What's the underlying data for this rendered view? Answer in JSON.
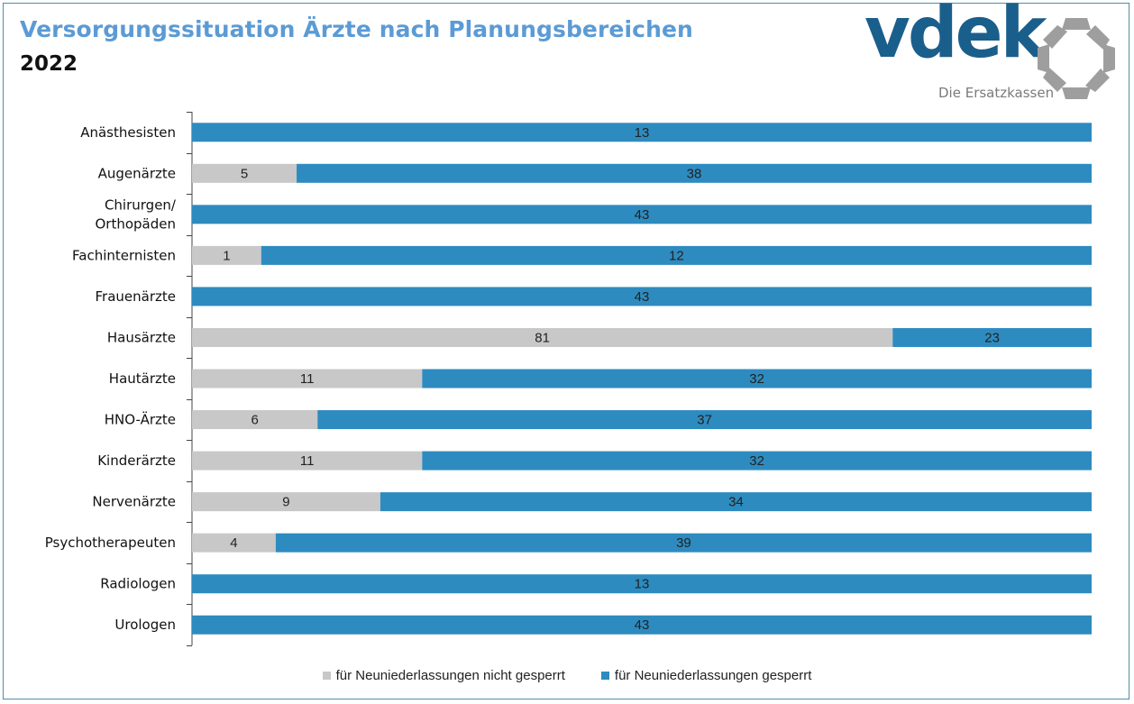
{
  "header": {
    "title": "Versorgungssituation Ärzte nach Planungsbereichen",
    "subtitle": "2022"
  },
  "logo": {
    "wordmark": "vdek",
    "tagline": "Die Ersatzkassen"
  },
  "colors": {
    "not_blocked": "#c8c8c8",
    "blocked": "#2e8bc0",
    "title": "#5b9bd5",
    "frame": "#4e8ea6"
  },
  "chart_data": {
    "type": "bar",
    "orientation": "horizontal",
    "stacking": "percent",
    "title": "Versorgungssituation Ärzte nach Planungsbereichen",
    "subtitle": "2022",
    "categories": [
      [
        "Anästhesisten"
      ],
      [
        "Augenärzte"
      ],
      [
        "Chirurgen/",
        "Orthopäden"
      ],
      [
        "Fachinternisten"
      ],
      [
        "Frauenärzte"
      ],
      [
        "Hausärzte"
      ],
      [
        "Hautärzte"
      ],
      [
        "HNO-Ärzte"
      ],
      [
        "Kinderärzte"
      ],
      [
        "Nervenärzte"
      ],
      [
        "Psychotherapeuten"
      ],
      [
        "Radiologen"
      ],
      [
        "Urologen"
      ]
    ],
    "series": [
      {
        "name": "für Neuniederlassungen nicht gesperrt",
        "color": "#c8c8c8",
        "values": [
          0,
          5,
          0,
          1,
          0,
          81,
          11,
          6,
          11,
          9,
          4,
          0,
          0
        ]
      },
      {
        "name": "für Neuniederlassungen gesperrt",
        "color": "#2e8bc0",
        "values": [
          13,
          38,
          43,
          12,
          43,
          23,
          32,
          37,
          32,
          34,
          39,
          13,
          43
        ]
      }
    ],
    "legend_position": "bottom",
    "grid": false
  }
}
